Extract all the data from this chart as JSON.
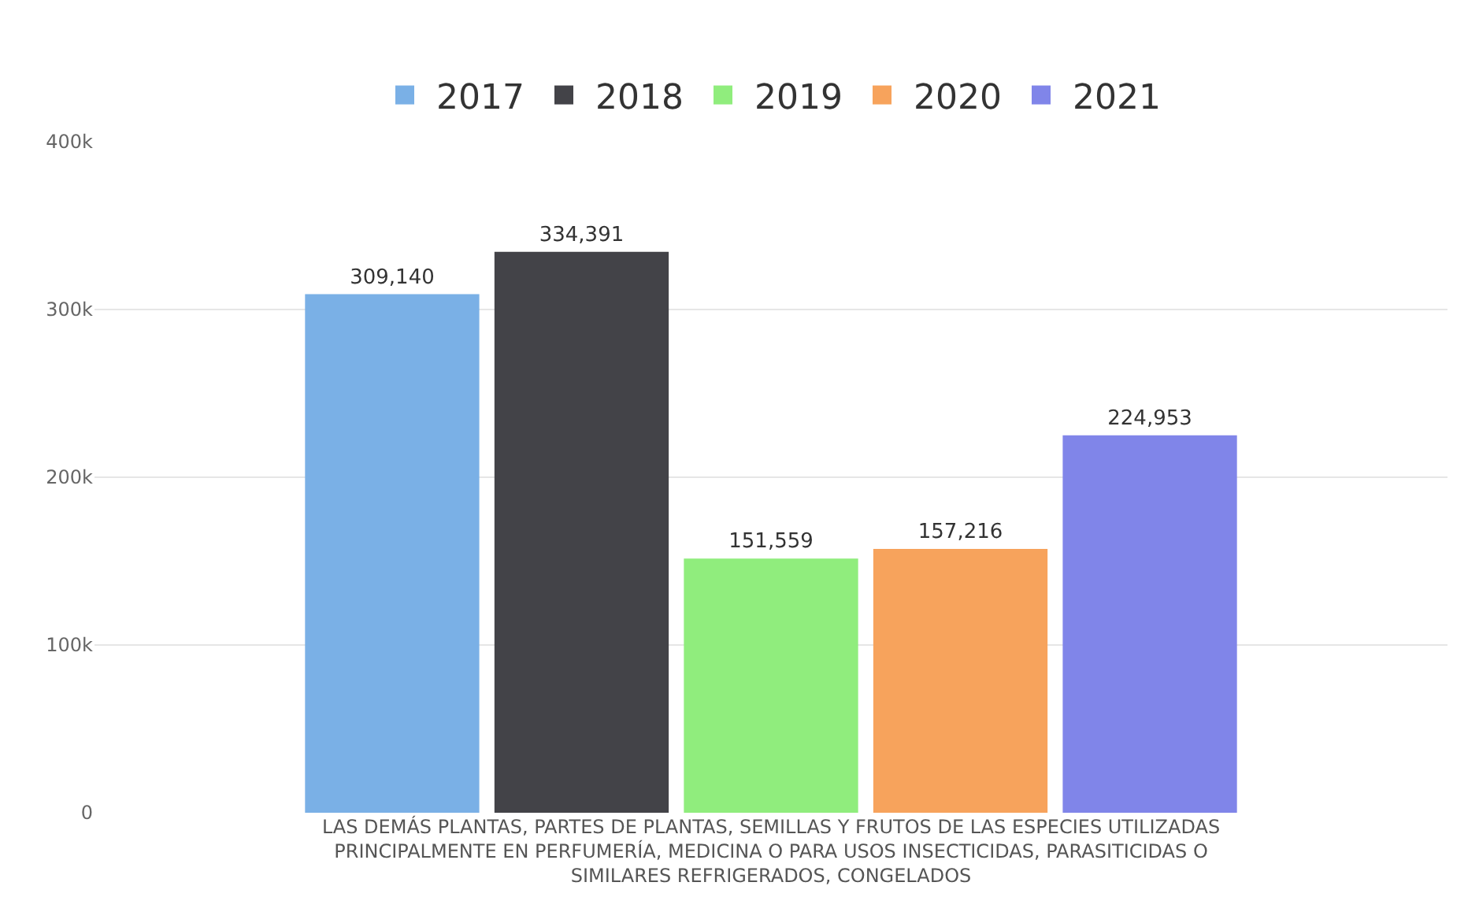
{
  "chart_data": {
    "type": "bar",
    "categories": [
      "LAS DEMÁS PLANTAS, PARTES DE PLANTAS, SEMILLAS Y FRUTOS DE LAS ESPECIES UTILIZADAS PRINCIPALMENTE EN PERFUMERÍA, MEDICINA O PARA USOS INSECTICIDAS, PARASITICIDAS O SIMILARES REFRIGERADOS, CONGELADOS"
    ],
    "series": [
      {
        "name": "2017",
        "color": "#7ab0e6",
        "values": [
          309140
        ],
        "value_labels": [
          "309,140"
        ]
      },
      {
        "name": "2018",
        "color": "#434348",
        "values": [
          334391
        ],
        "value_labels": [
          "334,391"
        ]
      },
      {
        "name": "2019",
        "color": "#90ed7d",
        "values": [
          151559
        ],
        "value_labels": [
          "151,559"
        ]
      },
      {
        "name": "2020",
        "color": "#f7a35c",
        "values": [
          157216
        ],
        "value_labels": [
          "157,216"
        ]
      },
      {
        "name": "2021",
        "color": "#8085e9",
        "values": [
          224953
        ],
        "value_labels": [
          "224,953"
        ]
      }
    ],
    "ylim": [
      0,
      400000
    ],
    "yticks": [
      {
        "value": 0,
        "label": "0"
      },
      {
        "value": 100000,
        "label": "100k"
      },
      {
        "value": 200000,
        "label": "200k"
      },
      {
        "value": 300000,
        "label": "300k"
      },
      {
        "value": 400000,
        "label": "400k"
      }
    ],
    "grid": "y",
    "legend": "top"
  }
}
